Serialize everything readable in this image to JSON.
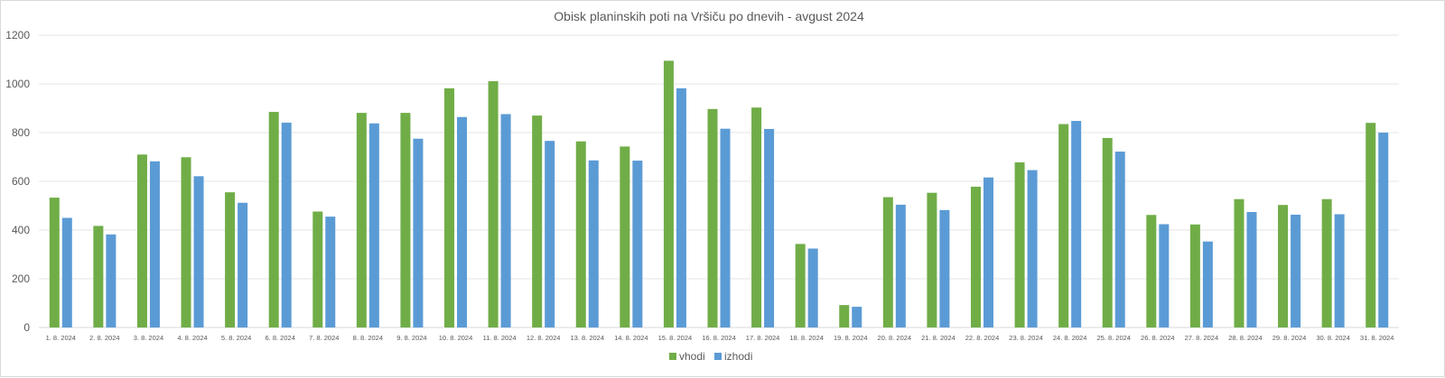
{
  "chart_data": {
    "type": "bar",
    "title": "Obisk planinskih poti na Vršiču po dnevih - avgust 2024",
    "xlabel": "",
    "ylabel": "",
    "ylim": [
      0,
      1200
    ],
    "yticks": [
      "0",
      "200",
      "400",
      "600",
      "800",
      "1000",
      "1200"
    ],
    "grid": true,
    "legend_position": "bottom",
    "categories": [
      "1. 8. 2024",
      "2. 8. 2024",
      "3. 8. 2024",
      "4. 8. 2024",
      "5. 8. 2024",
      "6. 8. 2024",
      "7. 8. 2024",
      "8. 8. 2024",
      "9. 8. 2024",
      "10. 8. 2024",
      "11. 8. 2024",
      "12. 8. 2024",
      "13. 8. 2024",
      "14. 8. 2024",
      "15. 8. 2024",
      "16. 8. 2024",
      "17. 8. 2024",
      "18. 8. 2024",
      "19. 8. 2024",
      "20. 8. 2024",
      "21. 8. 2024",
      "22. 8. 2024",
      "23. 8. 2024",
      "24. 8. 2024",
      "25. 8. 2024",
      "26. 8. 2024",
      "27. 8. 2024",
      "28. 8. 2024",
      "29. 8. 2024",
      "30. 8. 2024",
      "31. 8. 2024"
    ],
    "series": [
      {
        "name": "vhodi",
        "color": "#70AD47",
        "values": [
          533,
          417,
          710,
          699,
          555,
          885,
          476,
          881,
          881,
          982,
          1011,
          870,
          764,
          743,
          1095,
          897,
          903,
          343,
          92,
          535,
          553,
          578,
          678,
          835,
          778,
          462,
          423,
          527,
          503,
          527,
          840
        ]
      },
      {
        "name": "izhodi",
        "color": "#5B9BD5",
        "values": [
          450,
          382,
          682,
          621,
          512,
          841,
          455,
          838,
          775,
          864,
          876,
          766,
          686,
          685,
          982,
          816,
          815,
          324,
          85,
          504,
          482,
          616,
          646,
          848,
          722,
          424,
          353,
          474,
          463,
          465,
          800
        ]
      }
    ]
  }
}
